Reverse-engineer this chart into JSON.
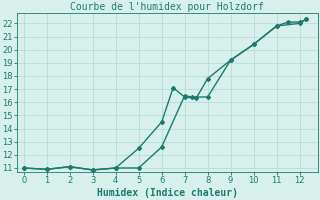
{
  "title": "Courbe de l'humidex pour Holzdorf",
  "xlabel": "Humidex (Indice chaleur)",
  "xlim": [
    -0.3,
    12.8
  ],
  "ylim": [
    10.7,
    22.8
  ],
  "xticks": [
    0,
    1,
    2,
    3,
    4,
    5,
    6,
    7,
    8,
    9,
    10,
    11,
    12
  ],
  "yticks": [
    11,
    12,
    13,
    14,
    15,
    16,
    17,
    18,
    19,
    20,
    21,
    22
  ],
  "line1_x": [
    0,
    1,
    2,
    3,
    4,
    5,
    6,
    7,
    7.3,
    8,
    9,
    10,
    11,
    11.5,
    12,
    12.3
  ],
  "line1_y": [
    11,
    10.9,
    11.1,
    10.85,
    11.0,
    11.0,
    12.6,
    16.5,
    16.4,
    16.4,
    19.2,
    20.4,
    21.8,
    22.1,
    22.1,
    22.3
  ],
  "line2_x": [
    0,
    1,
    2,
    3,
    4,
    5,
    6,
    6.5,
    7,
    7.5,
    8,
    9,
    10,
    11,
    12,
    12.3
  ],
  "line2_y": [
    11,
    10.9,
    11.1,
    10.85,
    11.0,
    12.5,
    14.5,
    17.1,
    16.4,
    16.3,
    17.8,
    19.2,
    20.4,
    21.8,
    22.0,
    22.3
  ],
  "color": "#1a7a6e",
  "bg_color": "#d8f0ec",
  "grid_color": "#b8dcd6",
  "title_fontsize": 7,
  "xlabel_fontsize": 7,
  "tick_fontsize": 6,
  "linewidth": 1.0,
  "marker": "D",
  "markersize": 2.0
}
